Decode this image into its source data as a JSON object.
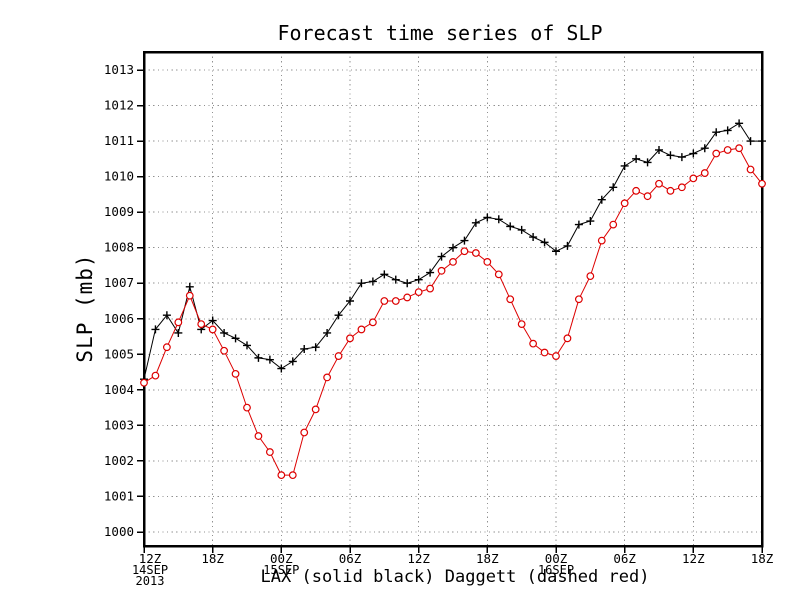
{
  "page": {
    "background": "#ffffff"
  },
  "chart_data": {
    "type": "line",
    "title": "Forecast time series of SLP",
    "ylabel": "SLP (mb)",
    "xlabel": "LAX (solid black) Daggett (dashed red)",
    "grid": true,
    "ylim": [
      999.6,
      1013.5
    ],
    "y_ticks": [
      "1000",
      "1001",
      "1002",
      "1003",
      "1004",
      "1005",
      "1006",
      "1007",
      "1008",
      "1009",
      "1010",
      "1011",
      "1012",
      "1013"
    ],
    "x_hours_per_point": 1,
    "x_ticks": [
      {
        "t": 0,
        "label": "12Z",
        "sub": [
          "14SEP",
          "2013"
        ]
      },
      {
        "t": 6,
        "label": "18Z",
        "sub": []
      },
      {
        "t": 12,
        "label": "00Z",
        "sub": [
          "15SEP"
        ]
      },
      {
        "t": 18,
        "label": "06Z",
        "sub": []
      },
      {
        "t": 24,
        "label": "12Z",
        "sub": []
      },
      {
        "t": 30,
        "label": "18Z",
        "sub": []
      },
      {
        "t": 36,
        "label": "00Z",
        "sub": [
          "16SEP"
        ]
      },
      {
        "t": 42,
        "label": "06Z",
        "sub": []
      },
      {
        "t": 48,
        "label": "12Z",
        "sub": []
      },
      {
        "t": 54,
        "label": "18Z",
        "sub": []
      }
    ],
    "grid_color": "#909090",
    "series": [
      {
        "name": "LAX",
        "style": "solid",
        "marker": "plus",
        "color": "#000000",
        "values": [
          1004.3,
          1005.7,
          1006.1,
          1005.6,
          1006.9,
          1005.7,
          1005.95,
          1005.6,
          1005.45,
          1005.25,
          1004.9,
          1004.85,
          1004.6,
          1004.8,
          1005.15,
          1005.2,
          1005.6,
          1006.1,
          1006.5,
          1007.0,
          1007.05,
          1007.25,
          1007.1,
          1007.0,
          1007.1,
          1007.3,
          1007.75,
          1008.0,
          1008.2,
          1008.7,
          1008.85,
          1008.8,
          1008.6,
          1008.5,
          1008.3,
          1008.15,
          1007.9,
          1008.05,
          1008.65,
          1008.75,
          1009.35,
          1009.7,
          1010.3,
          1010.5,
          1010.4,
          1010.75,
          1010.6,
          1010.55,
          1010.65,
          1010.8,
          1011.25,
          1011.3,
          1011.5,
          1011.0,
          1011.0
        ]
      },
      {
        "name": "Daggett",
        "style": "dashed",
        "marker": "circle",
        "color": "#dd0000",
        "values": [
          1004.2,
          1004.4,
          1005.2,
          1005.9,
          1006.65,
          1005.85,
          1005.7,
          1005.1,
          1004.45,
          1003.5,
          1002.7,
          1002.25,
          1001.6,
          1001.6,
          1002.8,
          1003.45,
          1004.35,
          1004.95,
          1005.45,
          1005.7,
          1005.9,
          1006.5,
          1006.5,
          1006.6,
          1006.75,
          1006.85,
          1007.35,
          1007.6,
          1007.9,
          1007.85,
          1007.6,
          1007.25,
          1006.55,
          1005.85,
          1005.3,
          1005.05,
          1004.95,
          1005.45,
          1006.55,
          1007.2,
          1008.2,
          1008.65,
          1009.25,
          1009.6,
          1009.45,
          1009.8,
          1009.6,
          1009.7,
          1009.95,
          1010.1,
          1010.65,
          1010.75,
          1010.8,
          1010.2,
          1009.8
        ]
      }
    ]
  }
}
